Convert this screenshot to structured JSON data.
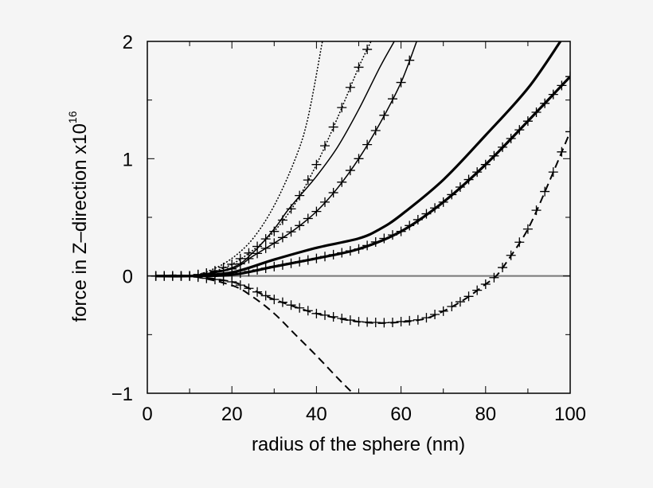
{
  "chart_data": {
    "type": "line",
    "title": "",
    "xlabel": "radius of the sphere (nm)",
    "ylabel_main": "force in Z–direction x10",
    "ylabel_exponent": "16",
    "ylabel": "force in Z-direction x10^16",
    "xlim": [
      0,
      100
    ],
    "ylim": [
      -1,
      2
    ],
    "xticks": [
      0,
      20,
      40,
      60,
      80,
      100
    ],
    "xtick_labels": [
      "0",
      "20",
      "40",
      "60",
      "80",
      "100"
    ],
    "xminor_step": 10,
    "yticks": [
      -1,
      0,
      1,
      2
    ],
    "ytick_labels": [
      "−1",
      "0",
      "1",
      "2"
    ],
    "yminor_step": 0.5,
    "grid": false,
    "legend": null,
    "zero_line": {
      "y": 0,
      "color": "#777777"
    },
    "series": [
      {
        "name": "dotted",
        "style": "dotted",
        "width": 1.5,
        "markers": false,
        "x": [
          2,
          10,
          15,
          20,
          25,
          30,
          35,
          38,
          41.4
        ],
        "y": [
          0,
          0,
          0.05,
          0.15,
          0.32,
          0.6,
          1.0,
          1.35,
          2.0
        ]
      },
      {
        "name": "dotted-cross",
        "style": "dotted",
        "width": 1.5,
        "markers": true,
        "x": [
          2,
          10,
          15,
          20,
          25,
          30,
          35,
          40,
          45,
          50,
          52.9
        ],
        "y": [
          0,
          0,
          0.03,
          0.1,
          0.22,
          0.38,
          0.62,
          0.95,
          1.35,
          1.78,
          2.0
        ]
      },
      {
        "name": "thin-solid",
        "style": "solid",
        "width": 1.5,
        "markers": false,
        "x": [
          2,
          10,
          20,
          25,
          30,
          33,
          36,
          40,
          45,
          50,
          55,
          58.4
        ],
        "y": [
          0,
          0,
          0.07,
          0.2,
          0.4,
          0.55,
          0.68,
          0.85,
          1.1,
          1.42,
          1.78,
          2.0
        ]
      },
      {
        "name": "thin-cross",
        "style": "solid",
        "width": 1.5,
        "markers": true,
        "x": [
          2,
          10,
          20,
          25,
          30,
          35,
          40,
          45,
          50,
          55,
          60,
          63.7
        ],
        "y": [
          0,
          0,
          0.06,
          0.17,
          0.28,
          0.4,
          0.55,
          0.75,
          1.0,
          1.3,
          1.65,
          2.0
        ]
      },
      {
        "name": "thick-solid",
        "style": "solid",
        "width": 3.2,
        "markers": false,
        "x": [
          2,
          10,
          20,
          30,
          40,
          50,
          55,
          60,
          70,
          80,
          90,
          97.7
        ],
        "y": [
          0,
          0,
          0.03,
          0.14,
          0.24,
          0.32,
          0.4,
          0.52,
          0.82,
          1.2,
          1.6,
          2.0
        ]
      },
      {
        "name": "thick-cross",
        "style": "solid",
        "width": 3.2,
        "markers": true,
        "x": [
          2,
          10,
          20,
          30,
          40,
          50,
          60,
          70,
          80,
          90,
          100
        ],
        "y": [
          0,
          0,
          0.01,
          0.08,
          0.15,
          0.23,
          0.38,
          0.63,
          0.95,
          1.32,
          1.7
        ]
      },
      {
        "name": "dashed-cross",
        "style": "dashed",
        "width": 2,
        "markers": true,
        "x": [
          2,
          10,
          20,
          25,
          30,
          40,
          50,
          57,
          65,
          70,
          75,
          80,
          82.5,
          85,
          90,
          95,
          100
        ],
        "y": [
          0,
          0,
          -0.05,
          -0.12,
          -0.2,
          -0.32,
          -0.39,
          -0.4,
          -0.37,
          -0.3,
          -0.2,
          -0.07,
          0,
          0.12,
          0.4,
          0.8,
          1.23
        ]
      },
      {
        "name": "dashed",
        "style": "dashed",
        "width": 2,
        "markers": false,
        "x": [
          2,
          10,
          20,
          25,
          30,
          35,
          40,
          45,
          48.6
        ],
        "y": [
          0,
          0,
          -0.08,
          -0.18,
          -0.32,
          -0.5,
          -0.68,
          -0.87,
          -1.0
        ]
      }
    ]
  }
}
